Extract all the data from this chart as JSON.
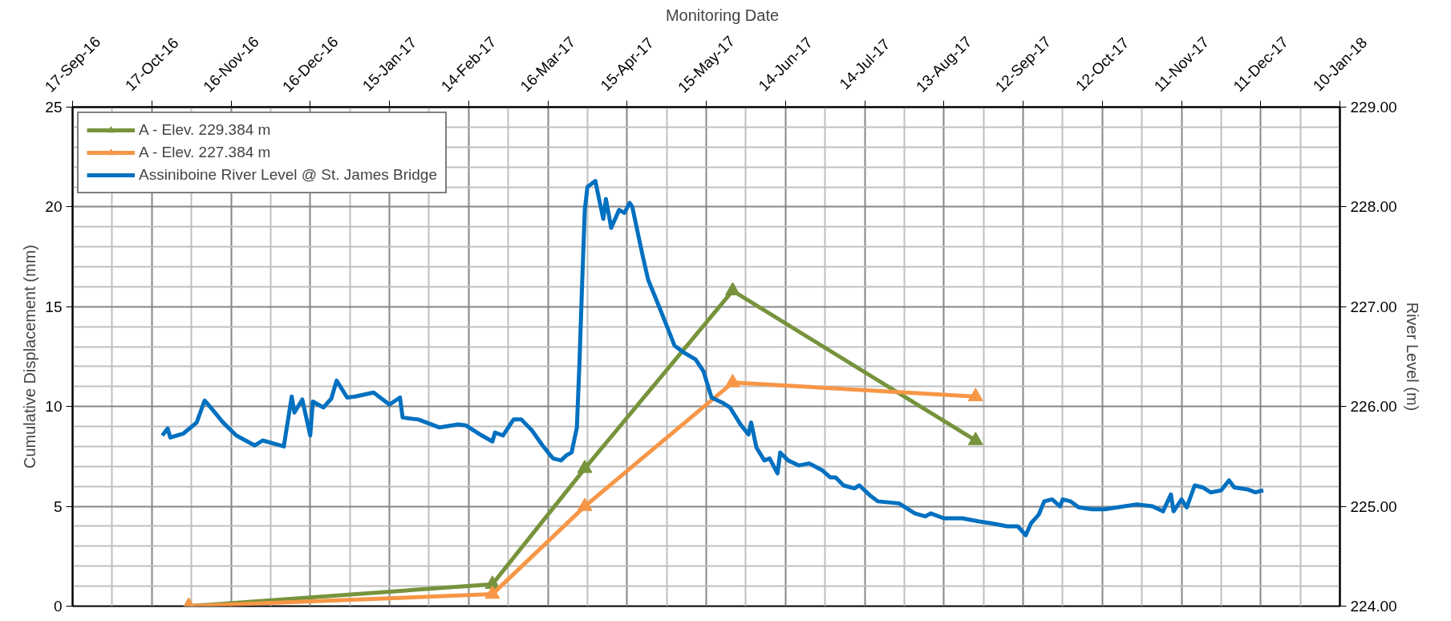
{
  "chart_data": {
    "type": "line",
    "xlabel": "Monitoring Date",
    "ylabel": "Cumulative Displacement (mm)",
    "y2label": "River Level (m)",
    "xlim": [
      "2016-09-17",
      "2018-01-10"
    ],
    "xticks": [
      {
        "value": "2016-09-17",
        "label": "17-Sep-16"
      },
      {
        "value": "2016-10-17",
        "label": "17-Oct-16"
      },
      {
        "value": "2016-11-16",
        "label": "16-Nov-16"
      },
      {
        "value": "2016-12-16",
        "label": "16-Dec-16"
      },
      {
        "value": "2017-01-15",
        "label": "15-Jan-17"
      },
      {
        "value": "2017-02-14",
        "label": "14-Feb-17"
      },
      {
        "value": "2017-03-16",
        "label": "16-Mar-17"
      },
      {
        "value": "2017-04-15",
        "label": "15-Apr-17"
      },
      {
        "value": "2017-05-15",
        "label": "15-May-17"
      },
      {
        "value": "2017-06-14",
        "label": "14-Jun-17"
      },
      {
        "value": "2017-07-14",
        "label": "14-Jul-17"
      },
      {
        "value": "2017-08-13",
        "label": "13-Aug-17"
      },
      {
        "value": "2017-09-12",
        "label": "12-Sep-17"
      },
      {
        "value": "2017-10-12",
        "label": "12-Oct-17"
      },
      {
        "value": "2017-11-11",
        "label": "11-Nov-17"
      },
      {
        "value": "2017-12-11",
        "label": "11-Dec-17"
      },
      {
        "value": "2018-01-10",
        "label": "10-Jan-18"
      }
    ],
    "ylim": [
      0,
      25
    ],
    "yticks": [
      0,
      5,
      10,
      15,
      20,
      25
    ],
    "y2lim": [
      224,
      229
    ],
    "y2ticks": [
      {
        "value": 224,
        "label": "224.00"
      },
      {
        "value": 225,
        "label": "225.00"
      },
      {
        "value": 226,
        "label": "226.00"
      },
      {
        "value": 227,
        "label": "227.00"
      },
      {
        "value": 228,
        "label": "228.00"
      },
      {
        "value": 229,
        "label": "229.00"
      }
    ],
    "grid": true,
    "legend": "top left",
    "series": [
      {
        "name": "A - Elev. 229.384 m",
        "color": "#77933c",
        "marker": "triangle",
        "x": [
          "2016-10-31",
          "2017-02-23",
          "2017-03-30",
          "2017-05-25",
          "2017-08-25"
        ],
        "values": [
          0,
          1.1,
          6.9,
          15.8,
          8.3
        ]
      },
      {
        "name": "A - Elev. 227.384 m",
        "color": "#f79646",
        "marker": "triangle",
        "x": [
          "2016-10-31",
          "2017-02-23",
          "2017-03-30",
          "2017-05-25",
          "2017-08-25"
        ],
        "values": [
          0,
          0.6,
          5.0,
          11.2,
          10.5
        ]
      },
      {
        "name": "Assiniboine River Level @ St. James Bridge",
        "color": "#0070c0",
        "marker": "none",
        "axis": "y2",
        "x": [
          "2016-10-21",
          "2016-10-23",
          "2016-10-24",
          "2016-10-29",
          "2016-11-03",
          "2016-11-06",
          "2016-11-08",
          "2016-11-13",
          "2016-11-18",
          "2016-11-25",
          "2016-11-28",
          "2016-12-06",
          "2016-12-09",
          "2016-12-10",
          "2016-12-13",
          "2016-12-16",
          "2016-12-17",
          "2016-12-21",
          "2016-12-24",
          "2016-12-26",
          "2016-12-30",
          "2017-01-02",
          "2017-01-09",
          "2017-01-15",
          "2017-01-19",
          "2017-01-20",
          "2017-01-26",
          "2017-02-03",
          "2017-02-10",
          "2017-02-13",
          "2017-02-19",
          "2017-02-23",
          "2017-02-24",
          "2017-02-27",
          "2017-03-03",
          "2017-03-06",
          "2017-03-10",
          "2017-03-14",
          "2017-03-17",
          "2017-03-18",
          "2017-03-21",
          "2017-03-23",
          "2017-03-25",
          "2017-03-27",
          "2017-03-28",
          "2017-03-29",
          "2017-03-30",
          "2017-03-31",
          "2017-04-03",
          "2017-04-04",
          "2017-04-06",
          "2017-04-07",
          "2017-04-09",
          "2017-04-12",
          "2017-04-14",
          "2017-04-16",
          "2017-04-17",
          "2017-04-21",
          "2017-04-23",
          "2017-04-27",
          "2017-04-30",
          "2017-05-03",
          "2017-05-06",
          "2017-05-11",
          "2017-05-14",
          "2017-05-17",
          "2017-05-21",
          "2017-05-24",
          "2017-05-28",
          "2017-05-31",
          "2017-06-01",
          "2017-06-03",
          "2017-06-06",
          "2017-06-08",
          "2017-06-11",
          "2017-06-12",
          "2017-06-15",
          "2017-06-19",
          "2017-06-23",
          "2017-06-28",
          "2017-07-01",
          "2017-07-03",
          "2017-07-06",
          "2017-07-10",
          "2017-07-12",
          "2017-07-16",
          "2017-07-19",
          "2017-07-27",
          "2017-07-30",
          "2017-08-02",
          "2017-08-06",
          "2017-08-08",
          "2017-08-13",
          "2017-08-20",
          "2017-08-26",
          "2017-08-31",
          "2017-09-06",
          "2017-09-10",
          "2017-09-13",
          "2017-09-15",
          "2017-09-18",
          "2017-09-20",
          "2017-09-23",
          "2017-09-26",
          "2017-09-27",
          "2017-09-30",
          "2017-10-03",
          "2017-10-08",
          "2017-10-13",
          "2017-10-18",
          "2017-10-25",
          "2017-10-31",
          "2017-11-04",
          "2017-11-07",
          "2017-11-08",
          "2017-11-11",
          "2017-11-13",
          "2017-11-16",
          "2017-11-19",
          "2017-11-22",
          "2017-11-26",
          "2017-11-29",
          "2017-12-01",
          "2017-12-06",
          "2017-12-09",
          "2017-12-12"
        ],
        "values": [
          225.71,
          225.78,
          225.69,
          225.73,
          225.84,
          226.06,
          226.0,
          225.84,
          225.71,
          225.61,
          225.66,
          225.6,
          226.1,
          225.94,
          226.07,
          225.71,
          226.05,
          225.99,
          226.08,
          226.26,
          226.09,
          226.1,
          226.14,
          226.02,
          226.09,
          225.89,
          225.87,
          225.79,
          225.82,
          225.81,
          225.71,
          225.65,
          225.74,
          225.71,
          225.87,
          225.87,
          225.76,
          225.61,
          225.51,
          225.48,
          225.46,
          225.51,
          225.54,
          225.79,
          226.45,
          227.24,
          227.97,
          228.2,
          228.26,
          228.13,
          227.88,
          228.08,
          227.79,
          227.97,
          227.94,
          228.04,
          228.0,
          227.5,
          227.27,
          227.01,
          226.81,
          226.61,
          226.55,
          226.47,
          226.35,
          226.09,
          226.04,
          225.99,
          225.82,
          225.72,
          225.84,
          225.59,
          225.46,
          225.48,
          225.33,
          225.54,
          225.46,
          225.41,
          225.43,
          225.36,
          225.29,
          225.29,
          225.21,
          225.18,
          225.21,
          225.11,
          225.05,
          225.03,
          224.98,
          224.93,
          224.9,
          224.93,
          224.88,
          224.88,
          224.85,
          224.83,
          224.8,
          224.8,
          224.71,
          224.83,
          224.92,
          225.05,
          225.07,
          225.0,
          225.07,
          225.05,
          224.99,
          224.97,
          224.97,
          224.99,
          225.02,
          225.0,
          224.95,
          225.12,
          224.95,
          225.07,
          224.99,
          225.21,
          225.19,
          225.14,
          225.16,
          225.26,
          225.19,
          225.17,
          225.14,
          225.16
        ]
      }
    ]
  }
}
